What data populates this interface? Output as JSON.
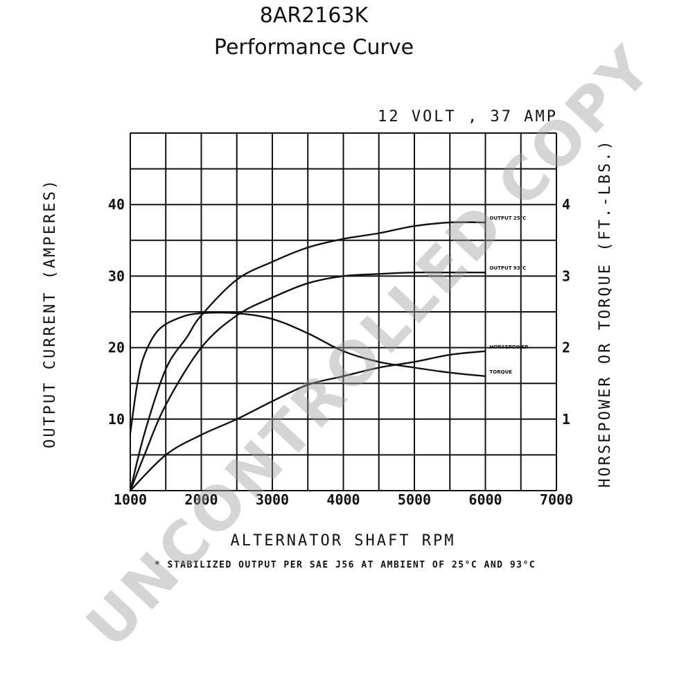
{
  "header": {
    "model": "8AR2163K",
    "subtitle": "Performance Curve"
  },
  "chart_data": {
    "type": "line",
    "rating": "12 VOLT , 37 AMP",
    "xlabel": "ALTERNATOR SHAFT RPM",
    "ylabel": "OUTPUT CURRENT (AMPERES)",
    "y2label": "HORSEPOWER OR TORQUE (FT.-LBS.)",
    "footnote": "* STABILIZED OUTPUT PER SAE J56 AT AMBIENT OF 25°C AND 93°C",
    "xlim": [
      1000,
      7000
    ],
    "ylim": [
      0,
      50
    ],
    "y2lim": [
      0,
      5
    ],
    "x_ticks": [
      "1000",
      "2000",
      "3000",
      "4000",
      "5000",
      "6000",
      "7000"
    ],
    "y_ticks": [
      "10",
      "20",
      "30",
      "40"
    ],
    "y2_ticks": [
      "1",
      "2",
      "3",
      "4"
    ],
    "grid": true,
    "series": [
      {
        "name": "OUTPUT 25°C",
        "axis": "left",
        "x": [
          1000,
          1200,
          1500,
          1800,
          2000,
          2500,
          3000,
          3500,
          4000,
          4500,
          5000,
          5500,
          6000
        ],
        "y": [
          0,
          8,
          17,
          21.5,
          24.5,
          29.5,
          32,
          34,
          35.2,
          36,
          37,
          37.5,
          37.5
        ]
      },
      {
        "name": "OUTPUT 93°C",
        "axis": "left",
        "x": [
          1000,
          1200,
          1500,
          2000,
          2500,
          3000,
          3500,
          4000,
          4500,
          5000,
          5500,
          6000
        ],
        "y": [
          0,
          5,
          12,
          20,
          24.5,
          27,
          29,
          30,
          30.3,
          30.5,
          30.5,
          30.5
        ]
      },
      {
        "name": "HORSEPOWER",
        "axis": "right",
        "x": [
          1000,
          1500,
          2000,
          2500,
          3000,
          3500,
          4000,
          4500,
          5000,
          5500,
          6000
        ],
        "y": [
          0,
          0.5,
          0.78,
          1.0,
          1.25,
          1.48,
          1.6,
          1.72,
          1.8,
          1.9,
          1.95
        ]
      },
      {
        "name": "TORQUE",
        "axis": "right",
        "x": [
          1000,
          1100,
          1200,
          1400,
          1700,
          2000,
          2500,
          3000,
          3500,
          4000,
          4500,
          5000,
          5500,
          6000
        ],
        "y": [
          0.8,
          1.5,
          1.9,
          2.25,
          2.42,
          2.48,
          2.48,
          2.4,
          2.2,
          1.95,
          1.8,
          1.72,
          1.65,
          1.6
        ]
      }
    ]
  },
  "watermark": "UNCONTROLLED COPY"
}
